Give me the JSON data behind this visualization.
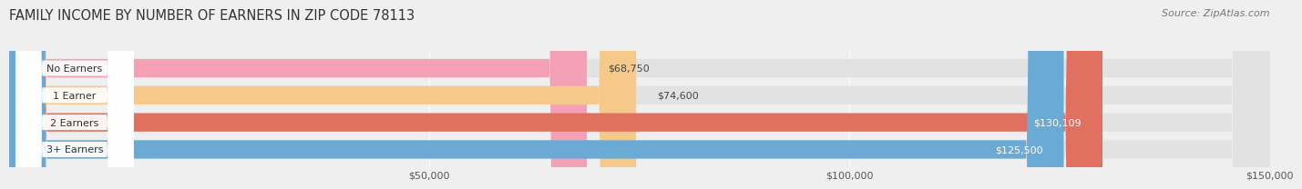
{
  "title": "FAMILY INCOME BY NUMBER OF EARNERS IN ZIP CODE 78113",
  "source": "Source: ZipAtlas.com",
  "categories": [
    "No Earners",
    "1 Earner",
    "2 Earners",
    "3+ Earners"
  ],
  "values": [
    68750,
    74600,
    130109,
    125500
  ],
  "bar_colors": [
    "#f4a0b5",
    "#f5c98a",
    "#e07060",
    "#6aaad4"
  ],
  "label_colors": [
    "#444444",
    "#444444",
    "#ffffff",
    "#ffffff"
  ],
  "x_min": 0,
  "x_max": 150000,
  "x_ticks": [
    50000,
    100000,
    150000
  ],
  "x_tick_labels": [
    "$50,000",
    "$100,000",
    "$150,000"
  ],
  "background_color": "#efefef",
  "bar_background": "#e2e2e2",
  "title_fontsize": 10.5,
  "source_fontsize": 8
}
